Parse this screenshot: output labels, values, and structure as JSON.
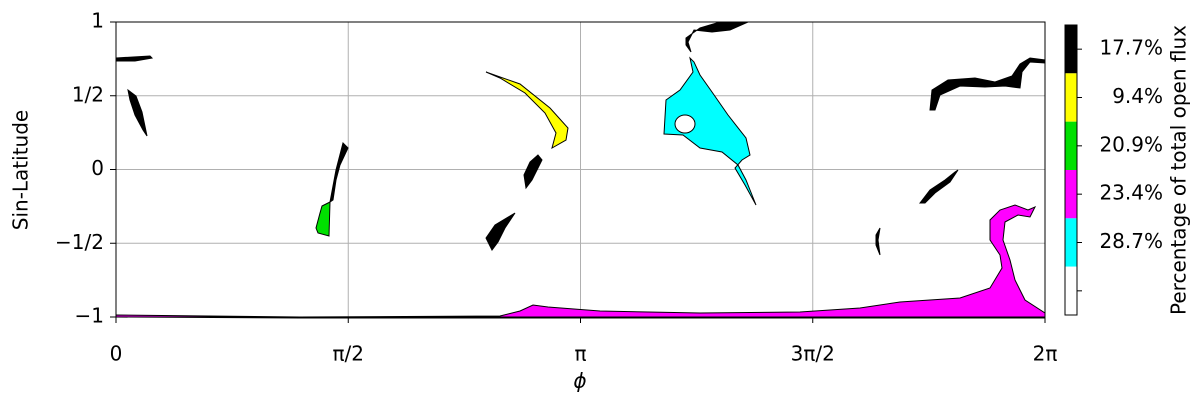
{
  "chart_data": {
    "type": "region-map",
    "xlabel": "ϕ",
    "ylabel": "Sin-Latitude",
    "xlim": [
      0,
      6.2832
    ],
    "ylim": [
      -1,
      1
    ],
    "xticks": [
      0,
      {
        "value": 1.5708,
        "label": "π/2"
      },
      {
        "value": 3.1416,
        "label": "π"
      },
      {
        "value": 4.7124,
        "label": "3π/2"
      },
      {
        "value": 6.2832,
        "label": "2π"
      }
    ],
    "yticks": [
      {
        "value": -1,
        "label": "−1"
      },
      {
        "value": -0.5,
        "label": "−1/2"
      },
      0,
      {
        "value": 0.5,
        "label": "1/2"
      },
      1
    ],
    "grid": true,
    "colorbar": {
      "label": "Percentage of total open flux",
      "colors": [
        "#000000",
        "#ffff00",
        "#00e000",
        "#ff00ff",
        "#00ffff",
        "#ffffff"
      ],
      "values": [
        17.7,
        9.4,
        20.9,
        23.4,
        28.7,
        null
      ],
      "value_labels": [
        "17.7%",
        "9.4%",
        "20.9%",
        "23.4%",
        "28.7%",
        null
      ]
    }
  }
}
